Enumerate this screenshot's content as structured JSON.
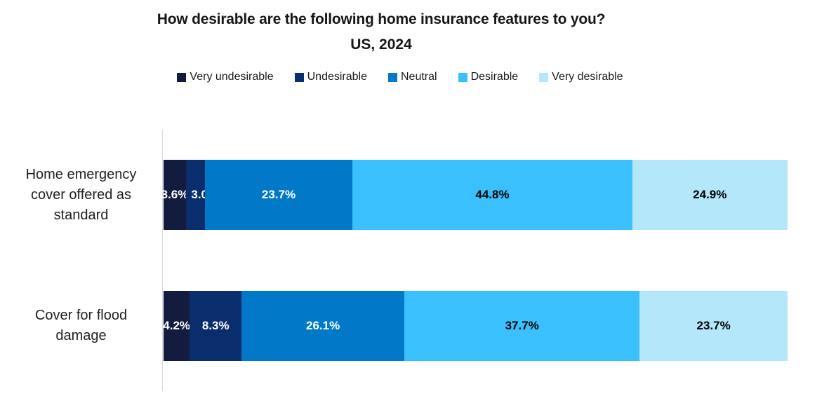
{
  "title": "How desirable are the following home insurance features to you?",
  "subtitle": "US, 2024",
  "chart_data": {
    "type": "bar",
    "stacked": true,
    "orientation": "horizontal",
    "unit": "percent",
    "value_format": "one_decimal_percent",
    "title": "How desirable are the following home insurance features to you?",
    "subtitle": "US, 2024",
    "xlabel": "",
    "ylabel": "",
    "xlim": [
      0,
      100
    ],
    "grid": false,
    "legend_position": "top",
    "axis_line_color": "#d9d9d9",
    "categories": [
      "Home emergency cover offered as standard",
      "Cover for flood damage"
    ],
    "series": [
      {
        "name": "Very undesirable",
        "color": "#131b3f",
        "label_color": "#ffffff",
        "values": [
          3.6,
          4.2
        ]
      },
      {
        "name": "Undesirable",
        "color": "#0a2d6e",
        "label_color": "#ffffff",
        "values": [
          3.0,
          8.3
        ]
      },
      {
        "name": "Neutral",
        "color": "#0278c8",
        "label_color": "#ffffff",
        "values": [
          23.7,
          26.1
        ]
      },
      {
        "name": "Desirable",
        "color": "#3ac0fc",
        "label_color": "#000000",
        "values": [
          44.8,
          37.7
        ]
      },
      {
        "name": "Very desirable",
        "color": "#b5e7fb",
        "label_color": "#000000",
        "values": [
          24.9,
          23.7
        ]
      }
    ]
  }
}
